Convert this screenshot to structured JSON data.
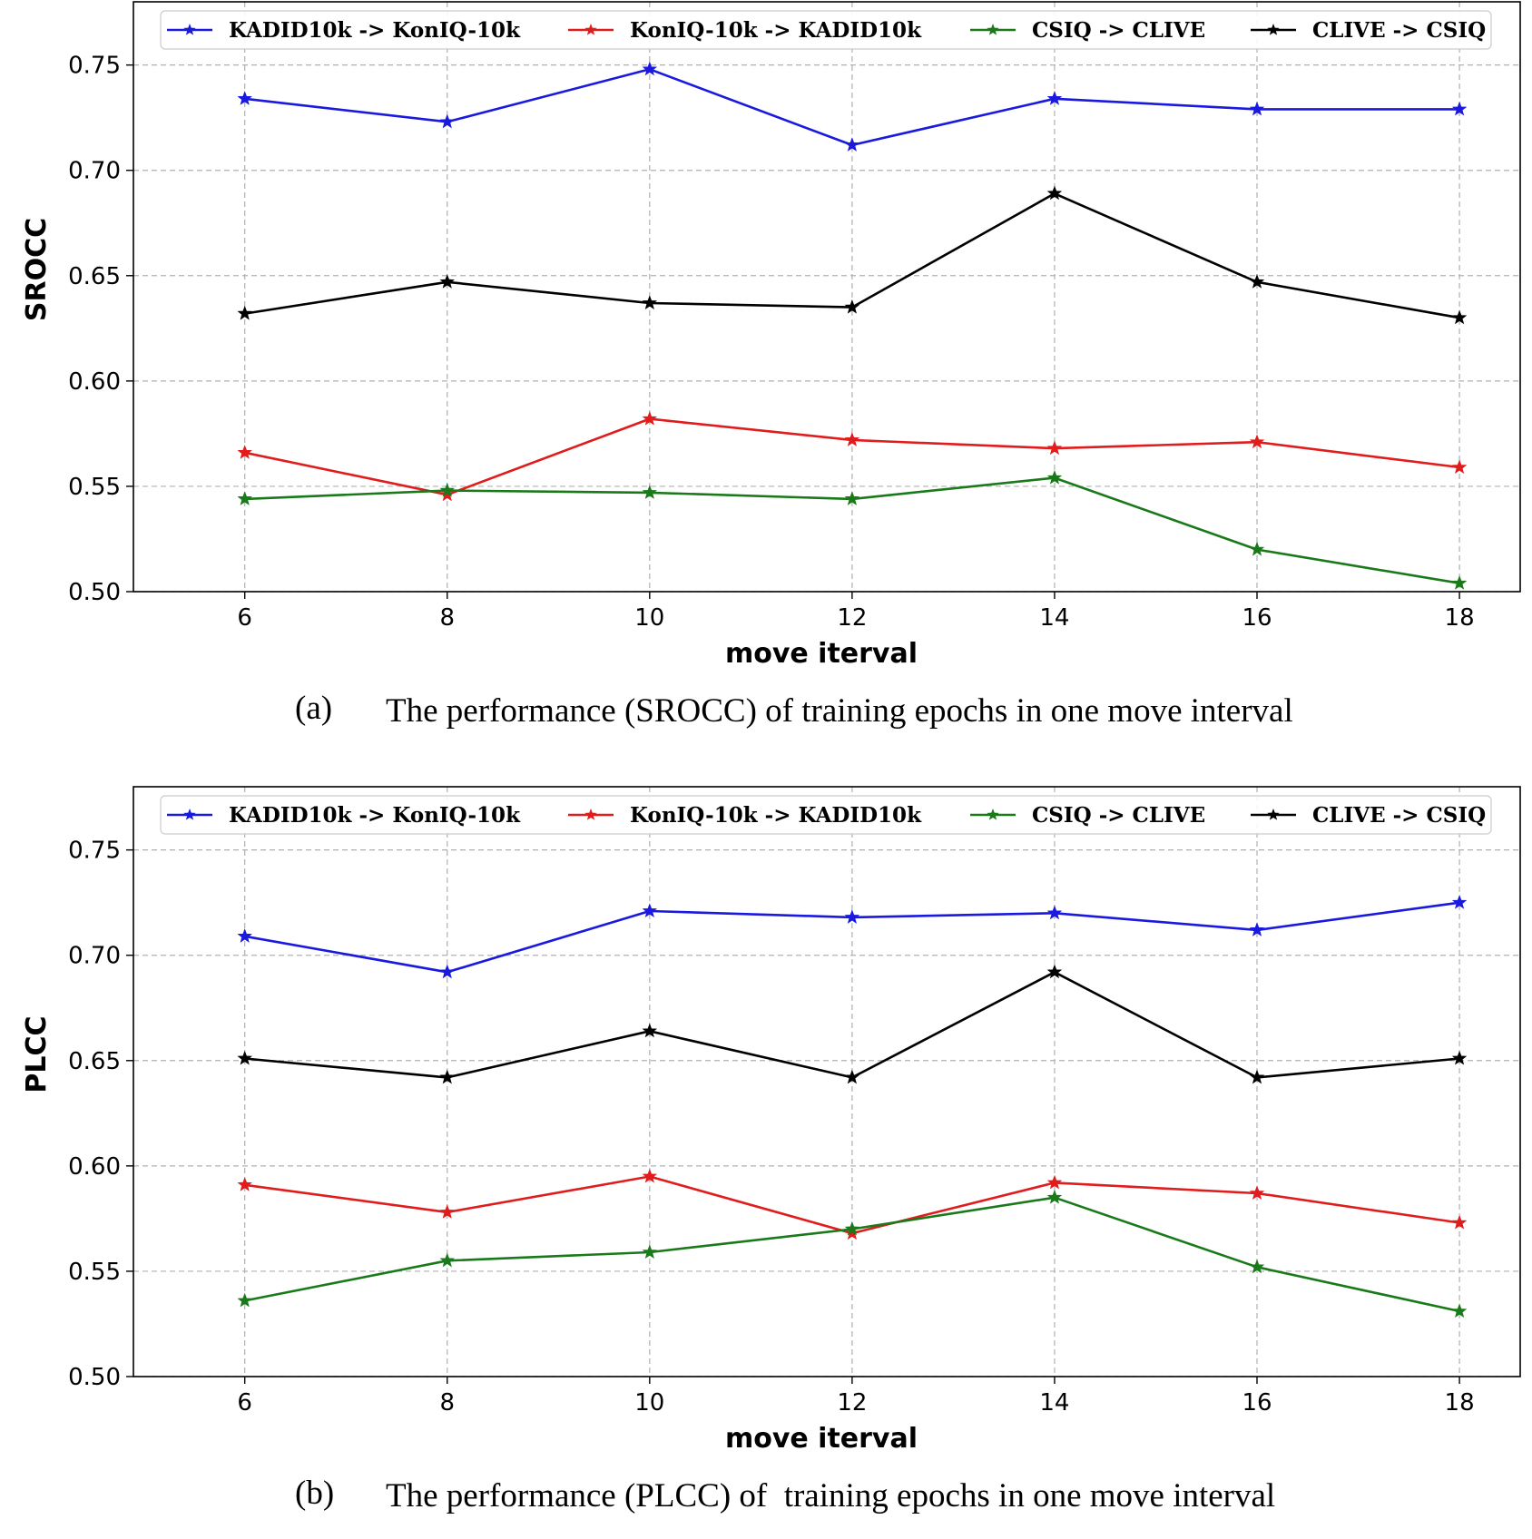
{
  "chart_data": [
    {
      "type": "line",
      "id": "a",
      "caption_label": "(a)",
      "caption_text": "The performance (SROCC) of training epochs in one move interval",
      "xlabel": "move iterval",
      "ylabel": "SROCC",
      "x": [
        6,
        8,
        10,
        12,
        14,
        16,
        18
      ],
      "xticks": [
        "6",
        "8",
        "10",
        "12",
        "14",
        "16",
        "18"
      ],
      "ylim": [
        0.5,
        0.78
      ],
      "yticks": [
        "0.50",
        "0.55",
        "0.60",
        "0.65",
        "0.70",
        "0.75"
      ],
      "grid": true,
      "legend_position": "top",
      "series": [
        {
          "name": "KADID10k -> KonIQ-10k",
          "color": "#1a1adf",
          "values": [
            0.734,
            0.723,
            0.748,
            0.712,
            0.734,
            0.729,
            0.729
          ]
        },
        {
          "name": "KonIQ-10k -> KADID10k",
          "color": "#e01c1c",
          "values": [
            0.566,
            0.546,
            0.582,
            0.572,
            0.568,
            0.571,
            0.559
          ]
        },
        {
          "name": "CSIQ -> CLIVE",
          "color": "#1a7a1a",
          "values": [
            0.544,
            0.548,
            0.547,
            0.544,
            0.554,
            0.52,
            0.504
          ]
        },
        {
          "name": "CLIVE -> CSIQ",
          "color": "#000000",
          "values": [
            0.632,
            0.647,
            0.637,
            0.635,
            0.689,
            0.647,
            0.63
          ]
        }
      ]
    },
    {
      "type": "line",
      "id": "b",
      "caption_label": "(b)",
      "caption_text": "The performance (PLCC) of  training epochs in one move interval",
      "xlabel": "move iterval",
      "ylabel": "PLCC",
      "x": [
        6,
        8,
        10,
        12,
        14,
        16,
        18
      ],
      "xticks": [
        "6",
        "8",
        "10",
        "12",
        "14",
        "16",
        "18"
      ],
      "ylim": [
        0.5,
        0.78
      ],
      "yticks": [
        "0.50",
        "0.55",
        "0.60",
        "0.65",
        "0.70",
        "0.75"
      ],
      "grid": true,
      "legend_position": "top",
      "series": [
        {
          "name": "KADID10k -> KonIQ-10k",
          "color": "#1a1adf",
          "values": [
            0.709,
            0.692,
            0.721,
            0.718,
            0.72,
            0.712,
            0.725
          ]
        },
        {
          "name": "KonIQ-10k -> KADID10k",
          "color": "#e01c1c",
          "values": [
            0.591,
            0.578,
            0.595,
            0.568,
            0.592,
            0.587,
            0.573
          ]
        },
        {
          "name": "CSIQ -> CLIVE",
          "color": "#1a7a1a",
          "values": [
            0.536,
            0.555,
            0.559,
            0.57,
            0.585,
            0.552,
            0.531
          ]
        },
        {
          "name": "CLIVE -> CSIQ",
          "color": "#000000",
          "values": [
            0.651,
            0.642,
            0.664,
            0.642,
            0.692,
            0.642,
            0.651
          ]
        }
      ]
    }
  ]
}
